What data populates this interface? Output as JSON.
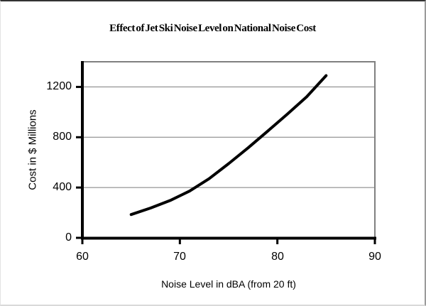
{
  "chart_data": {
    "type": "line",
    "title": "Effect of Jet Ski Noise Level on National Noise Cost",
    "xlabel": "Noise Level in dBA (from 20 ft)",
    "ylabel": "Cost in $ Millions",
    "xlim": [
      60,
      90
    ],
    "ylim": [
      0,
      1400
    ],
    "xticks": [
      60,
      70,
      80,
      90
    ],
    "yticks": [
      0,
      400,
      800,
      1200
    ],
    "xtick_labels": [
      "60",
      "70",
      "80",
      "90"
    ],
    "ytick_labels": [
      "0",
      "400",
      "800",
      "1200"
    ],
    "grid": "horizontal-only",
    "legend": "none",
    "series": [
      {
        "x": [
          65,
          67,
          69,
          71,
          73,
          75,
          77,
          79,
          81,
          83,
          85
        ],
        "y": [
          185,
          237,
          297,
          372,
          470,
          590,
          716,
          848,
          982,
          1121,
          1290
        ]
      }
    ],
    "colors": {
      "line": "#000000",
      "axis": "#000000",
      "gridline": "#7b7b7b",
      "plot_border": "#808080",
      "background": "#ffffff"
    }
  }
}
